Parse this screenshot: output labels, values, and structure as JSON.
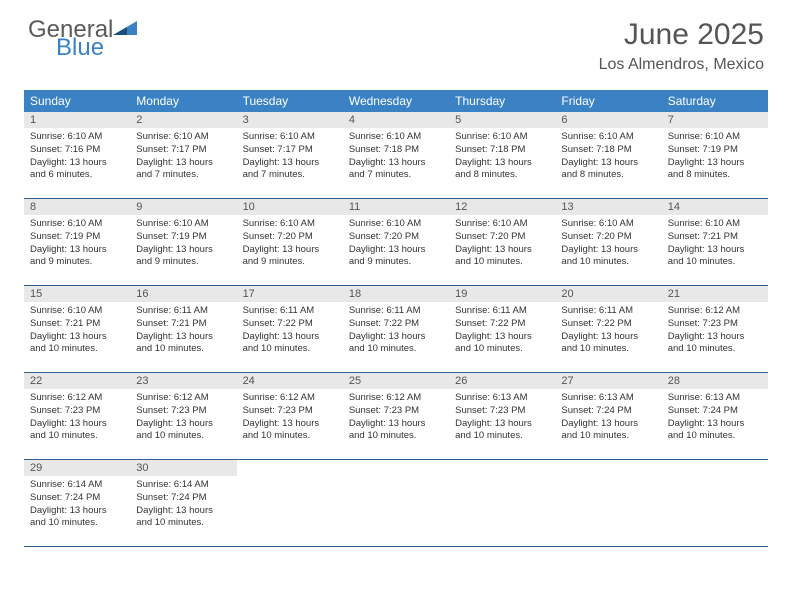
{
  "logo": {
    "text1": "General",
    "text2": "Blue",
    "color_general": "#5a5a5a",
    "color_blue": "#3b82c4"
  },
  "title": "June 2025",
  "location": "Los Almendros, Mexico",
  "header_bg": "#3b82c4",
  "daynum_bg": "#e8e8e8",
  "border_color": "#2f5d8f",
  "day_names": [
    "Sunday",
    "Monday",
    "Tuesday",
    "Wednesday",
    "Thursday",
    "Friday",
    "Saturday"
  ],
  "weeks": [
    [
      {
        "n": "1",
        "sr": "6:10 AM",
        "ss": "7:16 PM",
        "dl": "13 hours and 6 minutes."
      },
      {
        "n": "2",
        "sr": "6:10 AM",
        "ss": "7:17 PM",
        "dl": "13 hours and 7 minutes."
      },
      {
        "n": "3",
        "sr": "6:10 AM",
        "ss": "7:17 PM",
        "dl": "13 hours and 7 minutes."
      },
      {
        "n": "4",
        "sr": "6:10 AM",
        "ss": "7:18 PM",
        "dl": "13 hours and 7 minutes."
      },
      {
        "n": "5",
        "sr": "6:10 AM",
        "ss": "7:18 PM",
        "dl": "13 hours and 8 minutes."
      },
      {
        "n": "6",
        "sr": "6:10 AM",
        "ss": "7:18 PM",
        "dl": "13 hours and 8 minutes."
      },
      {
        "n": "7",
        "sr": "6:10 AM",
        "ss": "7:19 PM",
        "dl": "13 hours and 8 minutes."
      }
    ],
    [
      {
        "n": "8",
        "sr": "6:10 AM",
        "ss": "7:19 PM",
        "dl": "13 hours and 9 minutes."
      },
      {
        "n": "9",
        "sr": "6:10 AM",
        "ss": "7:19 PM",
        "dl": "13 hours and 9 minutes."
      },
      {
        "n": "10",
        "sr": "6:10 AM",
        "ss": "7:20 PM",
        "dl": "13 hours and 9 minutes."
      },
      {
        "n": "11",
        "sr": "6:10 AM",
        "ss": "7:20 PM",
        "dl": "13 hours and 9 minutes."
      },
      {
        "n": "12",
        "sr": "6:10 AM",
        "ss": "7:20 PM",
        "dl": "13 hours and 10 minutes."
      },
      {
        "n": "13",
        "sr": "6:10 AM",
        "ss": "7:20 PM",
        "dl": "13 hours and 10 minutes."
      },
      {
        "n": "14",
        "sr": "6:10 AM",
        "ss": "7:21 PM",
        "dl": "13 hours and 10 minutes."
      }
    ],
    [
      {
        "n": "15",
        "sr": "6:10 AM",
        "ss": "7:21 PM",
        "dl": "13 hours and 10 minutes."
      },
      {
        "n": "16",
        "sr": "6:11 AM",
        "ss": "7:21 PM",
        "dl": "13 hours and 10 minutes."
      },
      {
        "n": "17",
        "sr": "6:11 AM",
        "ss": "7:22 PM",
        "dl": "13 hours and 10 minutes."
      },
      {
        "n": "18",
        "sr": "6:11 AM",
        "ss": "7:22 PM",
        "dl": "13 hours and 10 minutes."
      },
      {
        "n": "19",
        "sr": "6:11 AM",
        "ss": "7:22 PM",
        "dl": "13 hours and 10 minutes."
      },
      {
        "n": "20",
        "sr": "6:11 AM",
        "ss": "7:22 PM",
        "dl": "13 hours and 10 minutes."
      },
      {
        "n": "21",
        "sr": "6:12 AM",
        "ss": "7:23 PM",
        "dl": "13 hours and 10 minutes."
      }
    ],
    [
      {
        "n": "22",
        "sr": "6:12 AM",
        "ss": "7:23 PM",
        "dl": "13 hours and 10 minutes."
      },
      {
        "n": "23",
        "sr": "6:12 AM",
        "ss": "7:23 PM",
        "dl": "13 hours and 10 minutes."
      },
      {
        "n": "24",
        "sr": "6:12 AM",
        "ss": "7:23 PM",
        "dl": "13 hours and 10 minutes."
      },
      {
        "n": "25",
        "sr": "6:12 AM",
        "ss": "7:23 PM",
        "dl": "13 hours and 10 minutes."
      },
      {
        "n": "26",
        "sr": "6:13 AM",
        "ss": "7:23 PM",
        "dl": "13 hours and 10 minutes."
      },
      {
        "n": "27",
        "sr": "6:13 AM",
        "ss": "7:24 PM",
        "dl": "13 hours and 10 minutes."
      },
      {
        "n": "28",
        "sr": "6:13 AM",
        "ss": "7:24 PM",
        "dl": "13 hours and 10 minutes."
      }
    ],
    [
      {
        "n": "29",
        "sr": "6:14 AM",
        "ss": "7:24 PM",
        "dl": "13 hours and 10 minutes."
      },
      {
        "n": "30",
        "sr": "6:14 AM",
        "ss": "7:24 PM",
        "dl": "13 hours and 10 minutes."
      },
      null,
      null,
      null,
      null,
      null
    ]
  ],
  "labels": {
    "sunrise": "Sunrise:",
    "sunset": "Sunset:",
    "daylight": "Daylight:"
  }
}
